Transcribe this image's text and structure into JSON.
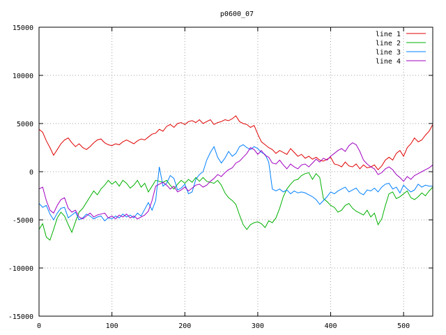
{
  "chart_data": {
    "type": "line",
    "title": "p0600_07",
    "xlabel": "",
    "ylabel": "",
    "xlim": [
      0,
      540
    ],
    "ylim": [
      -15000,
      15000
    ],
    "x_ticks": [
      0,
      100,
      200,
      300,
      400,
      500
    ],
    "y_ticks": [
      -15000,
      -10000,
      -5000,
      0,
      5000,
      10000,
      15000
    ],
    "grid": true,
    "legend_position": "top-right",
    "series": [
      {
        "name": "line 1",
        "color": "#e00000",
        "x": [
          0,
          5,
          10,
          15,
          20,
          25,
          30,
          35,
          40,
          45,
          50,
          55,
          60,
          65,
          70,
          75,
          80,
          85,
          90,
          95,
          100,
          105,
          110,
          115,
          120,
          125,
          130,
          135,
          140,
          145,
          150,
          155,
          160,
          165,
          170,
          175,
          180,
          185,
          190,
          195,
          200,
          205,
          210,
          215,
          220,
          225,
          230,
          235,
          240,
          245,
          250,
          255,
          260,
          265,
          270,
          275,
          280,
          285,
          290,
          295,
          300,
          305,
          310,
          315,
          320,
          325,
          330,
          335,
          340,
          345,
          350,
          355,
          360,
          365,
          370,
          375,
          380,
          385,
          390,
          395,
          400,
          405,
          410,
          415,
          420,
          425,
          430,
          435,
          440,
          445,
          450,
          455,
          460,
          465,
          470,
          475,
          480,
          485,
          490,
          495,
          500,
          505,
          510,
          515,
          520,
          525,
          530,
          535,
          540
        ],
        "y": [
          4400,
          4100,
          3200,
          2500,
          1700,
          2300,
          2900,
          3300,
          3500,
          3000,
          2600,
          2900,
          2500,
          2300,
          2600,
          3000,
          3300,
          3400,
          3000,
          2800,
          2700,
          2900,
          2800,
          3100,
          3300,
          3100,
          2900,
          3200,
          3400,
          3300,
          3600,
          3900,
          4000,
          4400,
          4200,
          4700,
          4900,
          4600,
          5000,
          5100,
          4900,
          5200,
          5300,
          5100,
          5400,
          5000,
          5200,
          5400,
          4900,
          5100,
          5200,
          5400,
          5300,
          5500,
          5800,
          5200,
          5000,
          4900,
          4600,
          4800,
          3900,
          3100,
          2800,
          2500,
          2300,
          1900,
          2200,
          2000,
          1800,
          2400,
          2000,
          1600,
          1800,
          1400,
          1600,
          1300,
          1500,
          1200,
          1100,
          1300,
          1500,
          800,
          700,
          500,
          1000,
          600,
          500,
          800,
          300,
          700,
          400,
          500,
          700,
          200,
          600,
          1200,
          1500,
          1200,
          1900,
          2200,
          1600,
          2500,
          2900,
          3500,
          3100,
          3300,
          3800,
          4200,
          4900
        ]
      },
      {
        "name": "line 2",
        "color": "#00b000",
        "x": [
          0,
          5,
          10,
          15,
          20,
          25,
          30,
          35,
          40,
          45,
          50,
          55,
          60,
          65,
          70,
          75,
          80,
          85,
          90,
          95,
          100,
          105,
          110,
          115,
          120,
          125,
          130,
          135,
          140,
          145,
          150,
          155,
          160,
          165,
          170,
          175,
          180,
          185,
          190,
          195,
          200,
          205,
          210,
          215,
          220,
          225,
          230,
          235,
          240,
          245,
          250,
          255,
          260,
          265,
          270,
          275,
          280,
          285,
          290,
          295,
          300,
          305,
          310,
          315,
          320,
          325,
          330,
          335,
          340,
          345,
          350,
          355,
          360,
          365,
          370,
          375,
          380,
          385,
          390,
          395,
          400,
          405,
          410,
          415,
          420,
          425,
          430,
          435,
          440,
          445,
          450,
          455,
          460,
          465,
          470,
          475,
          480,
          485,
          490,
          495,
          500,
          505,
          510,
          515,
          520,
          525,
          530,
          535,
          540
        ],
        "y": [
          -6000,
          -5400,
          -6800,
          -7100,
          -6000,
          -4800,
          -4200,
          -4600,
          -5500,
          -6300,
          -5200,
          -4200,
          -3800,
          -3200,
          -2600,
          -2000,
          -2400,
          -1800,
          -1400,
          -900,
          -1300,
          -1000,
          -1500,
          -900,
          -1200,
          -1700,
          -1400,
          -900,
          -1600,
          -1200,
          -2100,
          -1500,
          -900,
          -1000,
          -1100,
          -900,
          -1400,
          -1800,
          -1300,
          -900,
          -1200,
          -800,
          -1100,
          -600,
          -1000,
          -600,
          -1000,
          -1100,
          -1200,
          -900,
          -1400,
          -2200,
          -2700,
          -3000,
          -3400,
          -4500,
          -5500,
          -6000,
          -5500,
          -5300,
          -5200,
          -5400,
          -5800,
          -5100,
          -5300,
          -4800,
          -3800,
          -2600,
          -1800,
          -1300,
          -900,
          -800,
          -400,
          -200,
          -100,
          -800,
          -200,
          -600,
          -2800,
          -3100,
          -3500,
          -3700,
          -4200,
          -4000,
          -3500,
          -3300,
          -3800,
          -4100,
          -4300,
          -4500,
          -4000,
          -4700,
          -4300,
          -5500,
          -4900,
          -3500,
          -2300,
          -2100,
          -2800,
          -2600,
          -2300,
          -2000,
          -2700,
          -2900,
          -2600,
          -2200,
          -2500,
          -2000,
          -1600
        ]
      },
      {
        "name": "line 3",
        "color": "#0080ff",
        "x": [
          0,
          5,
          10,
          15,
          20,
          25,
          30,
          35,
          40,
          45,
          50,
          55,
          60,
          65,
          70,
          75,
          80,
          85,
          90,
          95,
          100,
          105,
          110,
          115,
          120,
          125,
          130,
          135,
          140,
          145,
          150,
          155,
          160,
          165,
          170,
          175,
          180,
          185,
          190,
          195,
          200,
          205,
          210,
          215,
          220,
          225,
          230,
          235,
          240,
          245,
          250,
          255,
          260,
          265,
          270,
          275,
          280,
          285,
          290,
          295,
          300,
          305,
          310,
          315,
          320,
          325,
          330,
          335,
          340,
          345,
          350,
          355,
          360,
          365,
          370,
          375,
          380,
          385,
          390,
          395,
          400,
          405,
          410,
          415,
          420,
          425,
          430,
          435,
          440,
          445,
          450,
          455,
          460,
          465,
          470,
          475,
          480,
          485,
          490,
          495,
          500,
          505,
          510,
          515,
          520,
          525,
          530,
          535,
          540
        ],
        "y": [
          -3300,
          -3700,
          -3500,
          -4400,
          -5000,
          -4300,
          -3800,
          -3700,
          -4800,
          -4500,
          -4200,
          -5000,
          -4800,
          -4400,
          -4600,
          -4900,
          -4700,
          -4600,
          -5100,
          -4800,
          -4900,
          -4600,
          -4800,
          -4400,
          -4700,
          -4500,
          -4800,
          -4300,
          -4600,
          -3900,
          -3200,
          -4000,
          -3000,
          500,
          -1500,
          -1200,
          -400,
          -700,
          -1900,
          -1700,
          -1300,
          -2300,
          -2100,
          -800,
          -300,
          0,
          1200,
          2000,
          2600,
          1500,
          900,
          1400,
          2100,
          1600,
          1900,
          2600,
          2800,
          2500,
          2300,
          2600,
          2400,
          2000,
          1800,
          1000,
          -1800,
          -2000,
          -1800,
          -2100,
          -1900,
          -2300,
          -2000,
          -2200,
          -2100,
          -2200,
          -2400,
          -2600,
          -2900,
          -3400,
          -3000,
          -2600,
          -2100,
          -2300,
          -2000,
          -1800,
          -1600,
          -2100,
          -1900,
          -1700,
          -2200,
          -2400,
          -1900,
          -2000,
          -1700,
          -2100,
          -1600,
          -1300,
          -1200,
          -1800,
          -1600,
          -2200,
          -1400,
          -1800,
          -2100,
          -1900,
          -1300,
          -1600,
          -1400,
          -1500,
          -1500
        ]
      },
      {
        "name": "line 4",
        "color": "#a000c0",
        "x": [
          0,
          5,
          10,
          15,
          20,
          25,
          30,
          35,
          40,
          45,
          50,
          55,
          60,
          65,
          70,
          75,
          80,
          85,
          90,
          95,
          100,
          105,
          110,
          115,
          120,
          125,
          130,
          135,
          140,
          145,
          150,
          155,
          160,
          165,
          170,
          175,
          180,
          185,
          190,
          195,
          200,
          205,
          210,
          215,
          220,
          225,
          230,
          235,
          240,
          245,
          250,
          255,
          260,
          265,
          270,
          275,
          280,
          285,
          290,
          295,
          300,
          305,
          310,
          315,
          320,
          325,
          330,
          335,
          340,
          345,
          350,
          355,
          360,
          365,
          370,
          375,
          380,
          385,
          390,
          395,
          400,
          405,
          410,
          415,
          420,
          425,
          430,
          435,
          440,
          445,
          450,
          455,
          460,
          465,
          470,
          475,
          480,
          485,
          490,
          495,
          500,
          505,
          510,
          515,
          520,
          525,
          530,
          535,
          540
        ],
        "y": [
          -1800,
          -1600,
          -3000,
          -4000,
          -4300,
          -3500,
          -2900,
          -2700,
          -3800,
          -4200,
          -4000,
          -4700,
          -4900,
          -4600,
          -4300,
          -4700,
          -4500,
          -4400,
          -4300,
          -4800,
          -4600,
          -4900,
          -4500,
          -4700,
          -4400,
          -4800,
          -4600,
          -4900,
          -4700,
          -4500,
          -4100,
          -3000,
          -1500,
          -1300,
          -1100,
          -1400,
          -1800,
          -1500,
          -2100,
          -1900,
          -1600,
          -2000,
          -1700,
          -1400,
          -1300,
          -1600,
          -1400,
          -1000,
          -700,
          -300,
          -500,
          -100,
          200,
          400,
          900,
          1100,
          1500,
          1900,
          2500,
          2300,
          1800,
          2200,
          1700,
          1500,
          900,
          800,
          1200,
          700,
          300,
          800,
          500,
          300,
          700,
          800,
          500,
          900,
          1300,
          1000,
          1400,
          1200,
          1600,
          1900,
          2200,
          2400,
          2100,
          2700,
          3000,
          2800,
          2100,
          1200,
          800,
          500,
          300,
          -300,
          -100,
          300,
          500,
          200,
          -300,
          -600,
          -1000,
          -500,
          -800,
          -400,
          -200,
          0,
          200,
          400,
          700
        ]
      }
    ]
  }
}
